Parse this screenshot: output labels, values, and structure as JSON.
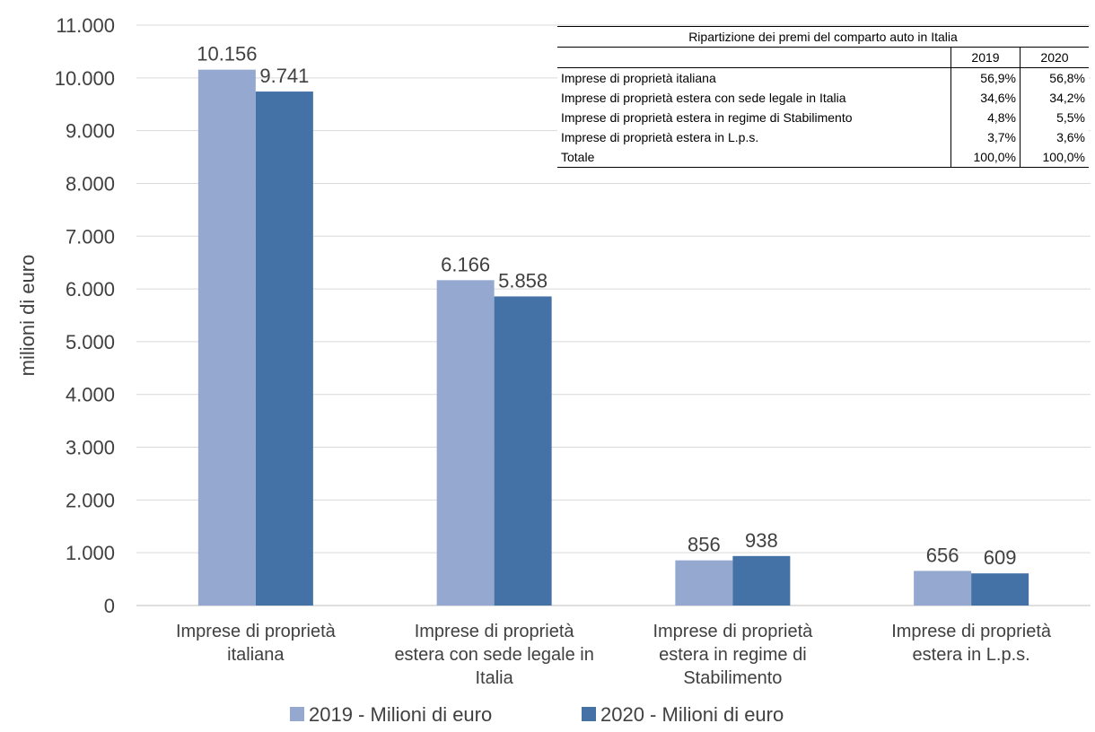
{
  "chart_data": {
    "type": "bar",
    "categories": [
      [
        "Imprese di proprietà",
        "italiana"
      ],
      [
        "Imprese di proprietà",
        "estera con sede legale in",
        "Italia"
      ],
      [
        "Imprese di proprietà",
        "estera in regime di",
        "Stabilimento"
      ],
      [
        "Imprese di proprietà",
        "estera in L.p.s."
      ]
    ],
    "series": [
      {
        "name": "2019 - Milioni di euro",
        "values": [
          10156,
          6166,
          856,
          656
        ],
        "labels": [
          "10.156",
          "6.166",
          "856",
          "656"
        ],
        "color": "#95A9D0"
      },
      {
        "name": "2020 - Milioni di euro",
        "values": [
          9741,
          5858,
          938,
          609
        ],
        "labels": [
          "9.741",
          "5.858",
          "938",
          "609"
        ],
        "color": "#4472A6"
      }
    ],
    "ylabel": "milioni di euro",
    "ylim": [
      0,
      11000
    ],
    "yticks": [
      {
        "value": 0,
        "label": "0"
      },
      {
        "value": 1000,
        "label": "1.000"
      },
      {
        "value": 2000,
        "label": "2.000"
      },
      {
        "value": 3000,
        "label": "3.000"
      },
      {
        "value": 4000,
        "label": "4.000"
      },
      {
        "value": 5000,
        "label": "5.000"
      },
      {
        "value": 6000,
        "label": "6.000"
      },
      {
        "value": 7000,
        "label": "7.000"
      },
      {
        "value": 8000,
        "label": "8.000"
      },
      {
        "value": 9000,
        "label": "9.000"
      },
      {
        "value": 10000,
        "label": "10.000"
      },
      {
        "value": 11000,
        "label": "11.000"
      }
    ],
    "grid": true,
    "legend": "bottom"
  },
  "inset_table": {
    "title": "Ripartizione dei premi del comparto auto in Italia",
    "columns": [
      "2019",
      "2020"
    ],
    "rows": [
      {
        "label": "Imprese di proprietà italiana",
        "v2019": "56,9%",
        "v2020": "56,8%"
      },
      {
        "label": "Imprese di proprietà estera con sede legale in Italia",
        "v2019": "34,6%",
        "v2020": "34,2%"
      },
      {
        "label": "Imprese di proprietà estera in regime di Stabilimento",
        "v2019": "4,8%",
        "v2020": "5,5%"
      },
      {
        "label": "Imprese di proprietà estera in L.p.s.",
        "v2019": "3,7%",
        "v2020": "3,6%"
      },
      {
        "label": "Totale",
        "v2019": "100,0%",
        "v2020": "100,0%"
      }
    ]
  }
}
